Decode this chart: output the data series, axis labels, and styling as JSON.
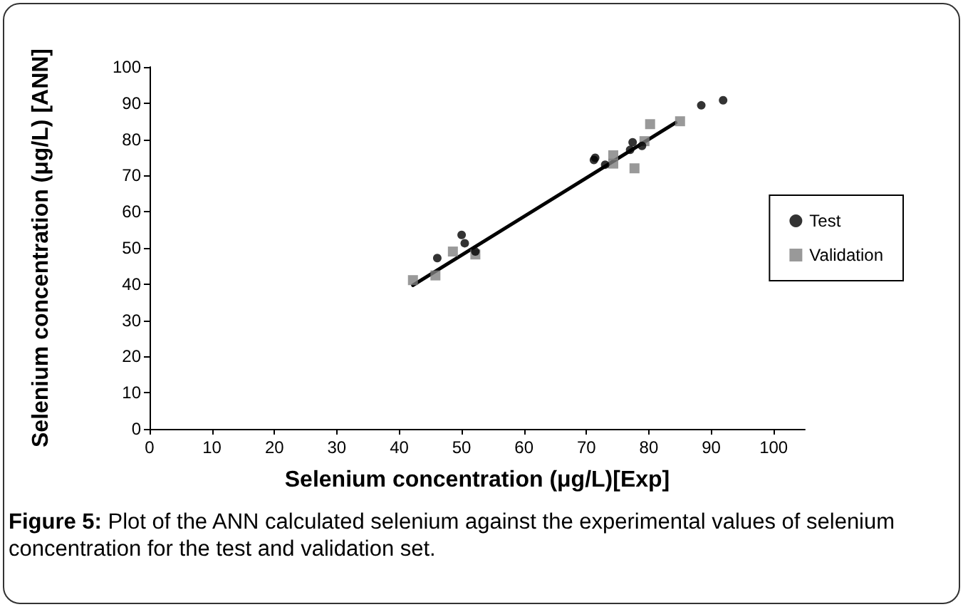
{
  "chart_data": {
    "type": "scatter",
    "xlabel": "Selenium concentration (μg/L)[Exp]",
    "ylabel": "Selenium concentration (μg/L) [ANN]",
    "annotations": [
      "Figure 5: Plot of the ANN calculated selenium against the experimental values of selenium concentration for the test and validation set."
    ],
    "xlim": [
      0,
      105
    ],
    "ylim": [
      0,
      100
    ],
    "xticks": [
      0,
      10,
      20,
      30,
      40,
      50,
      60,
      70,
      80,
      90,
      100
    ],
    "yticks": [
      0,
      10,
      20,
      30,
      40,
      50,
      60,
      70,
      80,
      90,
      100
    ],
    "grid": false,
    "legend": "right",
    "series": [
      {
        "name": "Test",
        "color": "#000000",
        "marker": "circle",
        "x": [
          46.1,
          50.0,
          50.5,
          52.2,
          71.2,
          71.4,
          73.0,
          77.0,
          77.4,
          78.9,
          88.4,
          91.9
        ],
        "values": [
          47.2,
          53.6,
          51.3,
          49.0,
          74.3,
          74.9,
          73.0,
          77.1,
          79.2,
          78.2,
          89.4,
          90.8
        ]
      },
      {
        "name": "Validation",
        "color": "#808080",
        "marker": "square",
        "x": [
          42.2,
          45.8,
          48.6,
          52.2,
          74.3,
          74.3,
          77.7,
          79.3,
          80.2,
          85.0
        ],
        "values": [
          41.1,
          42.4,
          49.0,
          48.2,
          75.6,
          73.3,
          72.0,
          79.5,
          84.2,
          85.0
        ]
      },
      {
        "type": "line",
        "color": "#000000",
        "marker": "none",
        "line_style": "solid",
        "x": [
          42.2,
          84.3
        ],
        "values": [
          39.7,
          84.6
        ]
      }
    ]
  }
}
